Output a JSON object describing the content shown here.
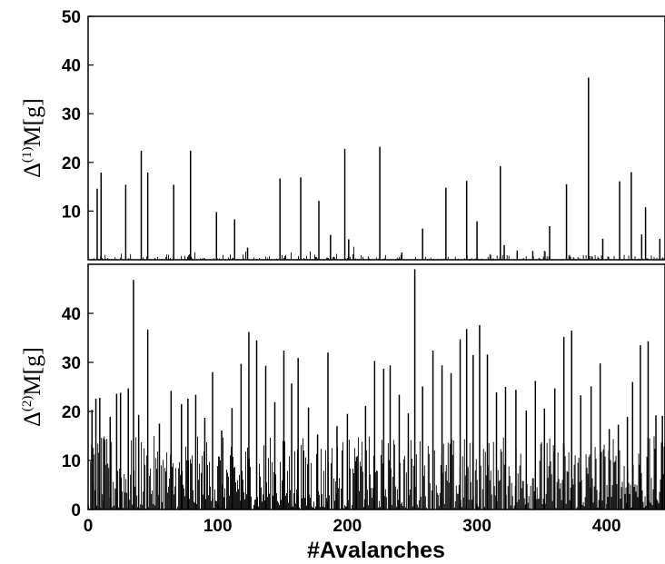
{
  "chart_data": [
    {
      "type": "bar",
      "panel": "top",
      "ylabel": {
        "prefix": "Δ",
        "sup": "(1)",
        "suffix": "M[g]"
      },
      "xlabel": "",
      "xlim": [
        0,
        445
      ],
      "ylim": [
        0,
        50
      ],
      "yticks": [
        10,
        20,
        30,
        40,
        50
      ],
      "xticks": [],
      "grid": false,
      "x": [
        7,
        10,
        29,
        41,
        46,
        66,
        79,
        99,
        113,
        123,
        148,
        164,
        178,
        187,
        198,
        201,
        225,
        242,
        258,
        276,
        292,
        300,
        318,
        321,
        331,
        343,
        356,
        369,
        386,
        397,
        410,
        419,
        427,
        430,
        441
      ],
      "values": [
        14.6,
        17.9,
        15.4,
        22.4,
        17.9,
        15.4,
        22.4,
        9.8,
        8.3,
        2.5,
        16.7,
        16.9,
        12.1,
        5.1,
        22.8,
        4.2,
        23.2,
        1.5,
        6.4,
        14.8,
        16.2,
        7.9,
        19.2,
        3.0,
        1.9,
        1.8,
        6.9,
        15.5,
        37.4,
        4.3,
        16.1,
        18.0,
        5.2,
        10.8,
        4.3
      ],
      "baseline_noise_max": 1.2
    },
    {
      "type": "bar",
      "panel": "bottom",
      "ylabel": {
        "prefix": "Δ",
        "sup": "(2)",
        "suffix": "M[g]"
      },
      "xlabel": "#Avalanches",
      "xlim": [
        0,
        445
      ],
      "ylim": [
        0,
        50
      ],
      "yticks": [
        0,
        10,
        20,
        30,
        40
      ],
      "xticks": [
        0,
        100,
        200,
        300,
        400
      ],
      "grid": false,
      "x": [
        3,
        6,
        9,
        12,
        17,
        22,
        25,
        31,
        35,
        39,
        46,
        55,
        64,
        72,
        77,
        83,
        90,
        96,
        103,
        111,
        118,
        124,
        130,
        137,
        144,
        151,
        157,
        162,
        170,
        177,
        185,
        192,
        200,
        207,
        214,
        221,
        228,
        233,
        240,
        247,
        252,
        258,
        266,
        273,
        280,
        287,
        292,
        297,
        302,
        308,
        315,
        322,
        330,
        338,
        345,
        352,
        360,
        367,
        373,
        380,
        388,
        395,
        402,
        409,
        416,
        420,
        426,
        432,
        438,
        443
      ],
      "values": [
        20.3,
        22.6,
        22.8,
        14.5,
        18.9,
        23.6,
        23.8,
        24.7,
        46.8,
        19.3,
        36.7,
        17.5,
        24.2,
        21.5,
        22.6,
        23.4,
        18.7,
        28.0,
        16.1,
        20.7,
        29.7,
        36.2,
        34.5,
        29.3,
        21.9,
        32.4,
        25.7,
        30.9,
        20.8,
        15.3,
        32.0,
        17.0,
        19.5,
        10.7,
        21.1,
        30.3,
        28.7,
        29.4,
        23.4,
        19.6,
        49.0,
        25.1,
        32.4,
        29.4,
        27.8,
        34.7,
        36.8,
        31.5,
        37.6,
        31.6,
        23.9,
        25.0,
        24.4,
        20.2,
        26.2,
        20.6,
        24.7,
        35.2,
        36.5,
        23.3,
        25.1,
        29.8,
        16.4,
        17.3,
        18.9,
        26.0,
        33.5,
        34.3,
        19.2,
        19.1
      ],
      "baseline_noise_max": 15
    }
  ]
}
